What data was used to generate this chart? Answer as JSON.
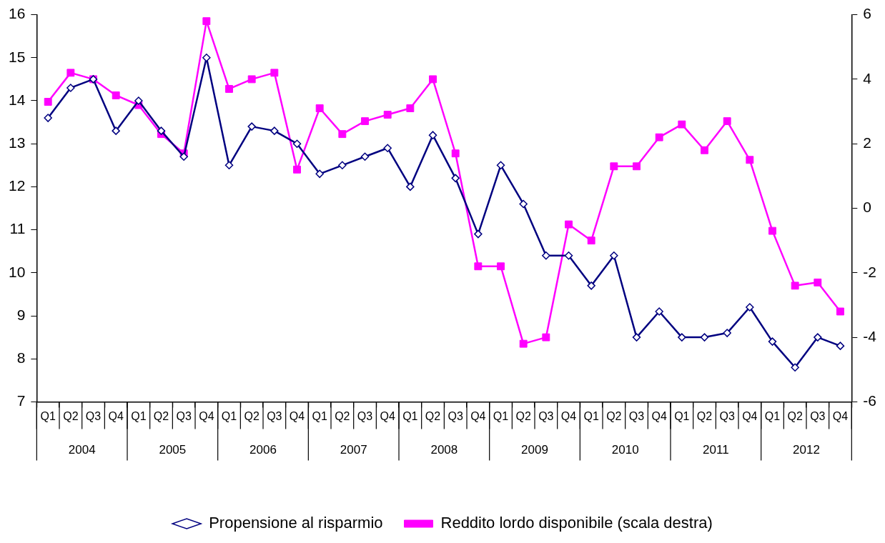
{
  "chart_data": {
    "type": "line",
    "categories": [
      "Q1",
      "Q2",
      "Q3",
      "Q4",
      "Q1",
      "Q2",
      "Q3",
      "Q4",
      "Q1",
      "Q2",
      "Q3",
      "Q4",
      "Q1",
      "Q2",
      "Q3",
      "Q4",
      "Q1",
      "Q2",
      "Q3",
      "Q4",
      "Q1",
      "Q2",
      "Q3",
      "Q4",
      "Q1",
      "Q2",
      "Q3",
      "Q4",
      "Q1",
      "Q2",
      "Q3",
      "Q4",
      "Q1",
      "Q2",
      "Q3",
      "Q4"
    ],
    "annotations": [
      "2004",
      "2005",
      "2006",
      "2007",
      "2008",
      "2009",
      "2010",
      "2011",
      "2012"
    ],
    "ylim": [
      7,
      16
    ],
    "yticks": [
      7,
      8,
      9,
      10,
      11,
      12,
      13,
      14,
      15,
      16
    ],
    "y2lim": [
      -6,
      6
    ],
    "y2ticks": [
      -6,
      -4,
      -2,
      0,
      2,
      4,
      6
    ],
    "grid": false,
    "legend": "bottom",
    "line_style": "solid",
    "series": [
      {
        "name": "Propensione al risparmio",
        "color": "#000080",
        "marker": "diamond",
        "values": [
          13.6,
          14.3,
          14.5,
          13.3,
          14.0,
          13.3,
          12.7,
          15.0,
          12.5,
          13.4,
          13.3,
          13.0,
          12.3,
          12.5,
          12.7,
          12.9,
          12.0,
          13.2,
          12.2,
          10.9,
          12.5,
          11.6,
          10.4,
          10.4,
          9.7,
          10.4,
          8.5,
          9.1,
          8.5,
          8.5,
          8.6,
          9.2,
          8.4,
          7.8,
          8.5,
          8.3
        ]
      },
      {
        "name": "Reddito lordo disponibile (scala destra)",
        "color": "#ff00ff",
        "marker": "square",
        "axis": "y2",
        "values": [
          3.3,
          4.2,
          4.0,
          3.5,
          3.2,
          2.3,
          1.7,
          5.8,
          3.7,
          4.0,
          4.2,
          1.2,
          3.1,
          2.3,
          2.7,
          2.9,
          3.1,
          4.0,
          1.7,
          -1.8,
          -1.8,
          -4.2,
          -4.0,
          -0.5,
          -1.0,
          1.3,
          1.3,
          2.2,
          2.6,
          1.8,
          2.7,
          1.5,
          -0.7,
          -2.4,
          -2.3,
          -3.2
        ]
      }
    ]
  }
}
